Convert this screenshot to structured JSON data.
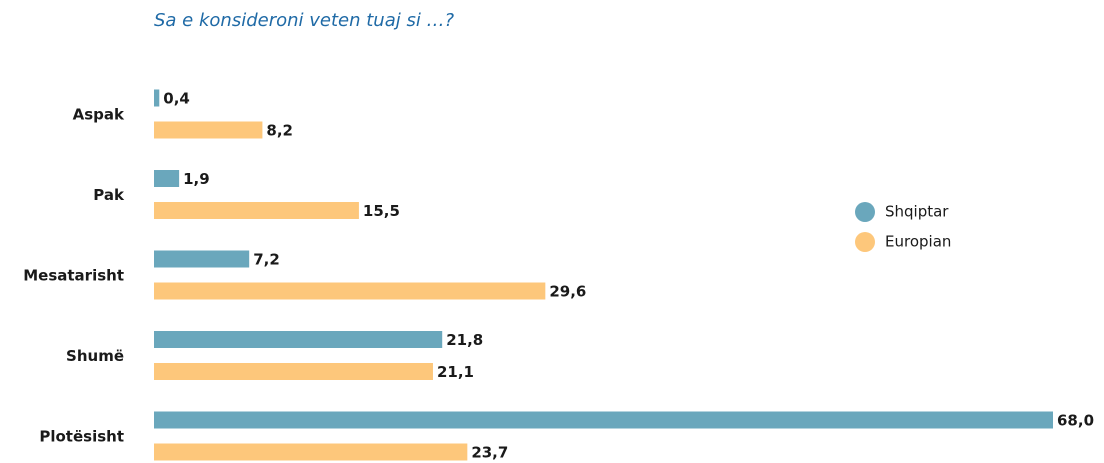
{
  "chart_data": {
    "type": "hbar",
    "title": "Sa e konsideroni veten tuaj si …?",
    "categories": [
      "Aspak",
      "Pak",
      "Mesatarisht",
      "Shumë",
      "Plotësisht"
    ],
    "series": [
      {
        "name": "Shqiptar",
        "color": "#6aa7bc",
        "values": [
          0.4,
          1.9,
          7.2,
          21.8,
          68.0
        ],
        "value_labels": [
          "0,4",
          "1,9",
          "7,2",
          "21,8",
          "68,0"
        ]
      },
      {
        "name": "Europian",
        "color": "#fdc77b",
        "values": [
          8.2,
          15.5,
          29.6,
          21.1,
          23.7
        ],
        "value_labels": [
          "8,2",
          "15,5",
          "29,6",
          "21,1",
          "23,7"
        ]
      }
    ]
  }
}
